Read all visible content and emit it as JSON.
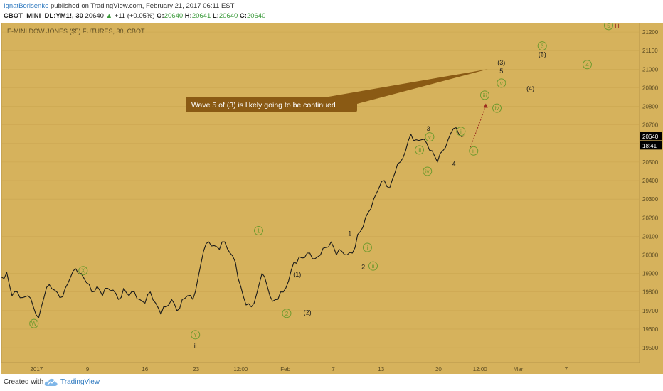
{
  "header": {
    "publisher": "IgnatBorisenko",
    "published_text": "published on TradingView.com, February 21, 2017 06:11 EST",
    "symbol": "CBOT_MINI_DL:YM1!, 30",
    "last": "20640",
    "change": "+11 (+0.05%)",
    "open_label": "O:",
    "open": "20640",
    "high_label": "H:",
    "high": "20641",
    "low_label": "L:",
    "low": "20640",
    "close_label": "C:",
    "close": "20640"
  },
  "footer": {
    "created_with": "Created with",
    "brand": "TradingView"
  },
  "colors": {
    "background": "#d6b25c",
    "candles": "#1a1a1a",
    "wave_green": "#6f9a2e",
    "wave_dark": "#1a1a1a",
    "wave_red": "#9b2b1e",
    "callout": "#8a5a14",
    "price_tag": "#000000"
  },
  "chart_data": {
    "type": "line",
    "title": "E-MINI DOW JONES ($5) FUTURES, 30, CBOT",
    "ylim": [
      19420,
      21250
    ],
    "yticks": [
      19500,
      19600,
      19700,
      19800,
      19900,
      20000,
      20100,
      20200,
      20300,
      20400,
      20500,
      20600,
      20700,
      20800,
      20900,
      21000,
      21100,
      21200
    ],
    "xticks": [
      "2017",
      "9",
      "16",
      "23",
      "12:00",
      "Feb",
      "7",
      "13",
      "20",
      "12:00",
      "Mar",
      "7"
    ],
    "current_price": "20640",
    "countdown": "18:41",
    "series": [
      {
        "values": [
          19880,
          19905,
          19780,
          19800,
          19770,
          19780,
          19720,
          19660,
          19770,
          19840,
          19810,
          19770,
          19820,
          19880,
          19925,
          19900,
          19850,
          19800,
          19830,
          19780,
          19820,
          19810,
          19760,
          19820,
          19780,
          19800,
          19760,
          19740,
          19800,
          19740,
          19680,
          19720,
          19760,
          19700,
          19760,
          19780,
          19760,
          19880,
          20020,
          20070,
          20050,
          20030,
          20070,
          20010,
          19960,
          19830,
          19730,
          19720,
          19790,
          19900,
          19830,
          19750,
          19760,
          19800,
          19860,
          19960,
          19990,
          19985,
          20010,
          19980,
          20000,
          20040,
          20070,
          20000,
          20020,
          20000,
          20010,
          20110,
          20150,
          20230,
          20300,
          20360,
          20400,
          20360,
          20440,
          20500,
          20560,
          20650,
          20620,
          20620,
          20600,
          20560,
          20500,
          20560,
          20620,
          20680,
          20650,
          20640
        ]
      }
    ]
  },
  "annotation": {
    "callout_text": "Wave 5 of (3) is likely going to be continued"
  },
  "wave_labels": [
    {
      "text": "W",
      "x": 10.2,
      "y": 19630,
      "style": "circle-green"
    },
    {
      "text": "X",
      "x": 25.6,
      "y": 19915,
      "style": "circle-green"
    },
    {
      "text": "Y",
      "x": 60.8,
      "y": 19570,
      "style": "circle-green"
    },
    {
      "text": "ii",
      "x": 60.8,
      "y": 19510,
      "style": "plain-dark"
    },
    {
      "text": "1",
      "x": 80.6,
      "y": 20130,
      "style": "circle-green"
    },
    {
      "text": "(1)",
      "x": 92.7,
      "y": 19895,
      "style": "plain-dark"
    },
    {
      "text": "2",
      "x": 89.4,
      "y": 19685,
      "style": "circle-green"
    },
    {
      "text": "(2)",
      "x": 95.9,
      "y": 19690,
      "style": "plain-dark"
    },
    {
      "text": "1",
      "x": 109.2,
      "y": 20115,
      "style": "plain-dark"
    },
    {
      "text": "i",
      "x": 114.7,
      "y": 20040,
      "style": "circle-green"
    },
    {
      "text": "2",
      "x": 113.4,
      "y": 19935,
      "style": "plain-dark"
    },
    {
      "text": "ii",
      "x": 116.5,
      "y": 19940,
      "style": "circle-green"
    },
    {
      "text": "3",
      "x": 133.8,
      "y": 20680,
      "style": "plain-dark"
    },
    {
      "text": "v",
      "x": 134.2,
      "y": 20635,
      "style": "circle-green"
    },
    {
      "text": "iii",
      "x": 131.0,
      "y": 20565,
      "style": "circle-green"
    },
    {
      "text": "iv",
      "x": 133.5,
      "y": 20450,
      "style": "circle-green"
    },
    {
      "text": "4",
      "x": 141.8,
      "y": 20490,
      "style": "plain-dark"
    },
    {
      "text": "i",
      "x": 144.0,
      "y": 20665,
      "style": "circle-green"
    },
    {
      "text": "ii",
      "x": 148.0,
      "y": 20560,
      "style": "circle-green"
    },
    {
      "text": "(3)",
      "x": 156.7,
      "y": 21035,
      "style": "plain-dark"
    },
    {
      "text": "5",
      "x": 156.7,
      "y": 20990,
      "style": "plain-dark"
    },
    {
      "text": "v",
      "x": 156.7,
      "y": 20925,
      "style": "circle-green"
    },
    {
      "text": "iii",
      "x": 151.5,
      "y": 20860,
      "style": "circle-green"
    },
    {
      "text": "iv",
      "x": 155.3,
      "y": 20790,
      "style": "circle-green"
    },
    {
      "text": "(4)",
      "x": 165.8,
      "y": 20895,
      "style": "plain-dark"
    },
    {
      "text": "3",
      "x": 169.5,
      "y": 21125,
      "style": "circle-green"
    },
    {
      "text": "(5)",
      "x": 169.5,
      "y": 21080,
      "style": "plain-dark"
    },
    {
      "text": "4",
      "x": 183.6,
      "y": 21025,
      "style": "circle-green"
    },
    {
      "text": "5",
      "x": 190.3,
      "y": 21235,
      "style": "circle-green"
    },
    {
      "text": "iii",
      "x": 193.0,
      "y": 21235,
      "style": "plain-red"
    }
  ]
}
